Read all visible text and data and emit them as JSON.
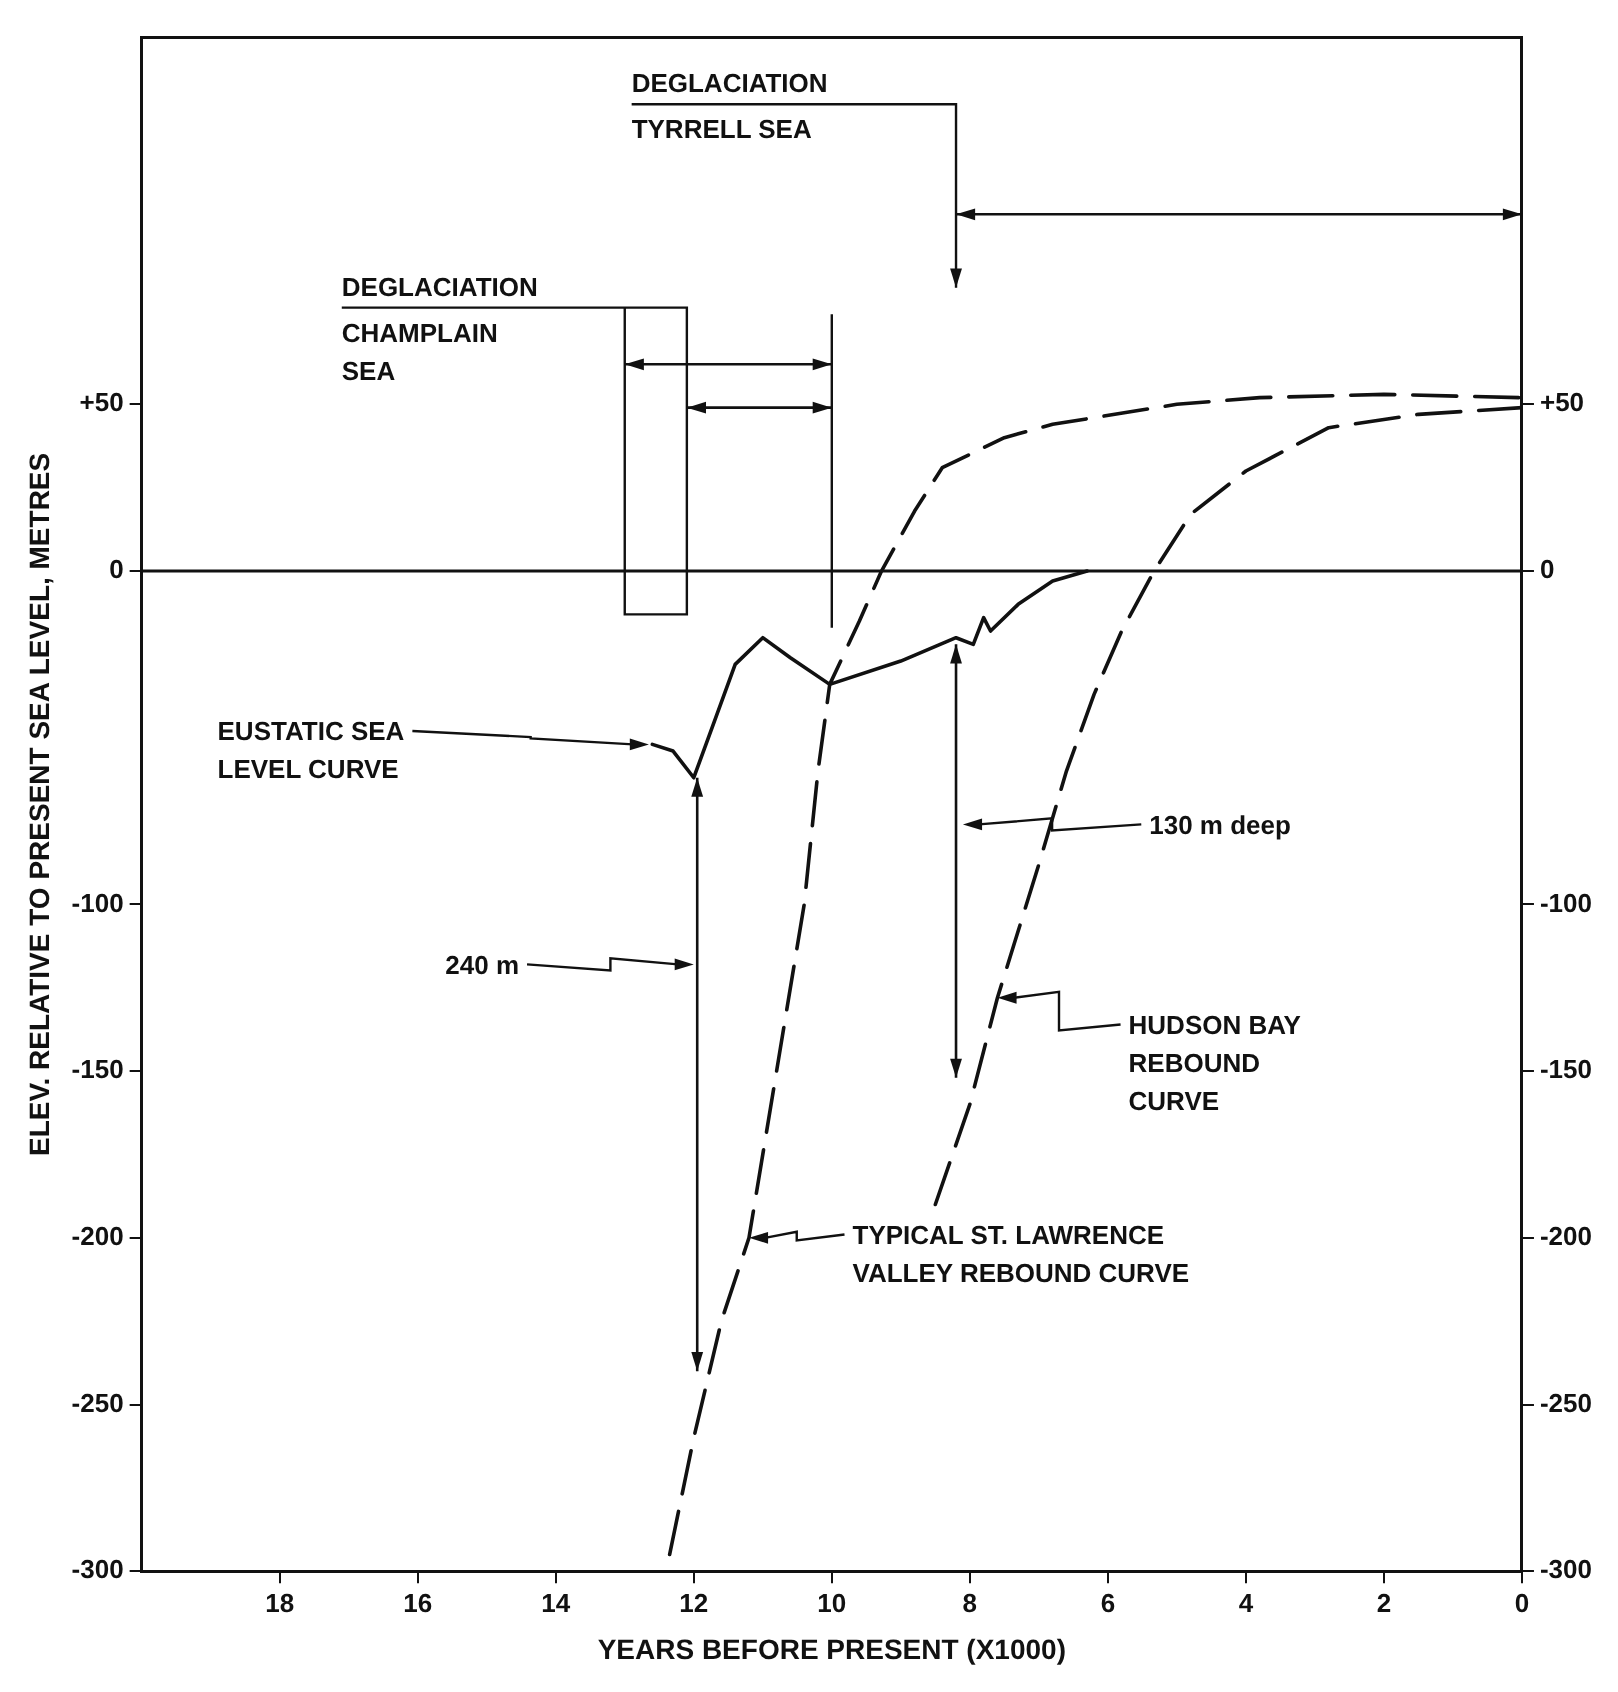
{
  "chart_data": {
    "type": "line",
    "xlabel": "YEARS BEFORE PRESENT (X1000)",
    "ylabel": "ELEV. RELATIVE TO PRESENT SEA LEVEL, METRES",
    "series": [
      {
        "color": "#111111",
        "line_style": "solid",
        "x": [
          12.6,
          12.3,
          12.0,
          11.7,
          11.4,
          11.0,
          10.6,
          10.03,
          9.0,
          8.2,
          7.95,
          7.8,
          7.7,
          7.3,
          6.8,
          6.3
        ],
        "values": [
          -52,
          -54,
          -62,
          -45,
          -28,
          -20,
          -26,
          -34,
          -27,
          -20,
          -22,
          -14,
          -18,
          -10,
          -3,
          0
        ]
      },
      {
        "color": "#111111",
        "line_style": "dashed",
        "x": [
          12.35,
          12.0,
          11.6,
          11.2,
          10.8,
          10.4,
          10.2,
          10.03,
          9.6,
          9.28,
          8.8,
          8.4,
          7.5,
          6.8,
          5,
          3.8,
          2,
          0
        ],
        "values": [
          -295,
          -260,
          -225,
          -200,
          -150,
          -100,
          -60,
          -34,
          -15,
          0,
          18,
          31,
          40,
          44,
          50,
          52,
          53,
          52
        ]
      },
      {
        "color": "#111111",
        "line_style": "dashed",
        "x": [
          8.5,
          8.0,
          7.6,
          7.0,
          6.6,
          6.2,
          5.8,
          5.33,
          4.8,
          4,
          2.8,
          1.5,
          0
        ],
        "values": [
          -190,
          -160,
          -128,
          -88,
          -60,
          -37,
          -18,
          0,
          17,
          30,
          43,
          47,
          49
        ]
      }
    ],
    "xlim": [
      20,
      0
    ],
    "xticks": [
      18,
      16,
      14,
      12,
      10,
      8,
      6,
      4,
      2,
      0
    ],
    "ylim": [
      -300,
      160
    ],
    "yticks": [
      {
        "value": 50,
        "label": "+50"
      },
      0,
      -100,
      -150,
      -200,
      -250,
      -300
    ],
    "y2lim": [
      -300,
      160
    ],
    "y2ticks": [
      {
        "value": 50,
        "label": "+50"
      },
      0,
      -100,
      -150,
      -200,
      -250,
      -300
    ],
    "ref_lines": [
      {
        "axis": "y",
        "value": 0
      }
    ],
    "annotations": [
      "EUSTATIC SEA\nLEVEL CURVE",
      "240 m",
      "130 m deep",
      "HUDSON BAY\nREBOUND\nCURVE",
      "TYPICAL ST. LAWRENCE\nVALLEY REBOUND CURVE",
      "DEGLACIATION\nCHAMPLAIN\nSEA",
      "DEGLACIATION\nTYRRELL SEA"
    ],
    "grid": false,
    "legend": false,
    "marker": "none"
  }
}
